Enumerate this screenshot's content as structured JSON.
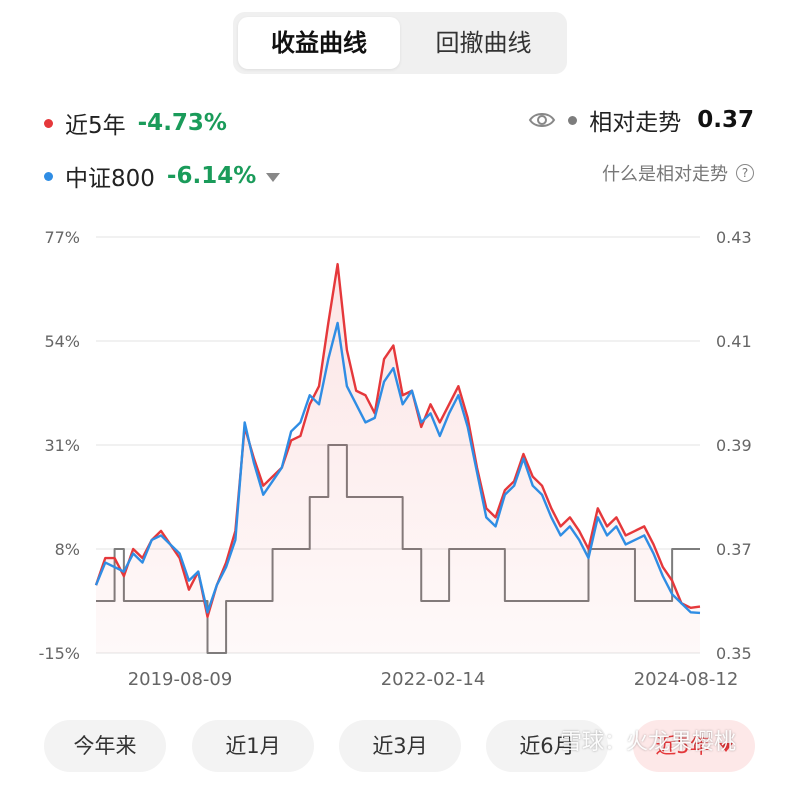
{
  "tabs": [
    {
      "label": "收益曲线",
      "active": true
    },
    {
      "label": "回撤曲线",
      "active": false
    }
  ],
  "legend": {
    "fund": {
      "name": "近5年",
      "value": "-4.73%",
      "color": "#e5383b",
      "value_color": "#1a9b5a"
    },
    "benchmark": {
      "name": "中证800",
      "value": "-6.14%",
      "color": "#2f8de4",
      "value_color": "#1a9b5a"
    },
    "relative": {
      "name": "相对走势",
      "value": "0.37",
      "color": "#7d7d7d"
    }
  },
  "help": {
    "label": "什么是相对走势",
    "icon_glyph": "?"
  },
  "chart_data": {
    "type": "line",
    "x_tick_labels": [
      "2019-08-09",
      "2022-02-14",
      "2024-08-12"
    ],
    "y_left": {
      "ticks": [
        "77%",
        "54%",
        "31%",
        "8%",
        "-15%"
      ],
      "range": [
        -15,
        77
      ],
      "unit": "%"
    },
    "y_right": {
      "ticks": [
        "0.43",
        "0.41",
        "0.39",
        "0.37",
        "0.35"
      ],
      "range": [
        0.35,
        0.43
      ]
    },
    "x_range": [
      "2019-03",
      "2024-08"
    ],
    "grid": true,
    "series": [
      {
        "name": "近5年",
        "axis": "left",
        "color": "#e5383b",
        "fill": true,
        "points": [
          [
            "2019-03",
            0
          ],
          [
            "2019-04",
            6
          ],
          [
            "2019-05",
            6
          ],
          [
            "2019-06",
            2
          ],
          [
            "2019-07",
            8
          ],
          [
            "2019-08",
            6
          ],
          [
            "2019-09",
            10
          ],
          [
            "2019-10",
            12
          ],
          [
            "2019-11",
            9
          ],
          [
            "2019-12",
            6
          ],
          [
            "2020-01",
            -1
          ],
          [
            "2020-02",
            3
          ],
          [
            "2020-03",
            -7
          ],
          [
            "2020-04",
            0
          ],
          [
            "2020-05",
            5
          ],
          [
            "2020-06",
            12
          ],
          [
            "2020-07",
            35
          ],
          [
            "2020-08",
            28
          ],
          [
            "2020-09",
            22
          ],
          [
            "2020-10",
            24
          ],
          [
            "2020-11",
            26
          ],
          [
            "2020-12",
            32
          ],
          [
            "2021-01",
            33
          ],
          [
            "2021-02",
            40
          ],
          [
            "2021-03",
            44
          ],
          [
            "2021-04",
            58
          ],
          [
            "2021-05",
            71
          ],
          [
            "2021-06",
            52
          ],
          [
            "2021-07",
            43
          ],
          [
            "2021-08",
            42
          ],
          [
            "2021-09",
            38
          ],
          [
            "2021-10",
            50
          ],
          [
            "2021-11",
            53
          ],
          [
            "2021-12",
            42
          ],
          [
            "2022-01",
            43
          ],
          [
            "2022-02",
            35
          ],
          [
            "2022-03",
            40
          ],
          [
            "2022-04",
            36
          ],
          [
            "2022-05",
            40
          ],
          [
            "2022-06",
            44
          ],
          [
            "2022-07",
            37
          ],
          [
            "2022-08",
            26
          ],
          [
            "2022-09",
            17
          ],
          [
            "2022-10",
            15
          ],
          [
            "2022-11",
            21
          ],
          [
            "2022-12",
            23
          ],
          [
            "2023-01",
            29
          ],
          [
            "2023-02",
            24
          ],
          [
            "2023-03",
            22
          ],
          [
            "2023-04",
            17
          ],
          [
            "2023-05",
            13
          ],
          [
            "2023-06",
            15
          ],
          [
            "2023-07",
            12
          ],
          [
            "2023-08",
            8
          ],
          [
            "2023-09",
            17
          ],
          [
            "2023-10",
            13
          ],
          [
            "2023-11",
            15
          ],
          [
            "2023-12",
            11
          ],
          [
            "2024-01",
            12
          ],
          [
            "2024-02",
            13
          ],
          [
            "2024-03",
            9
          ],
          [
            "2024-04",
            4
          ],
          [
            "2024-05",
            1
          ],
          [
            "2024-06",
            -4
          ],
          [
            "2024-07",
            -5
          ],
          [
            "2024-08",
            -4.73
          ]
        ]
      },
      {
        "name": "中证800",
        "axis": "left",
        "color": "#2f8de4",
        "fill": false,
        "points": [
          [
            "2019-03",
            0
          ],
          [
            "2019-04",
            5
          ],
          [
            "2019-05",
            4
          ],
          [
            "2019-06",
            3
          ],
          [
            "2019-07",
            7
          ],
          [
            "2019-08",
            5
          ],
          [
            "2019-09",
            10
          ],
          [
            "2019-10",
            11
          ],
          [
            "2019-11",
            9
          ],
          [
            "2019-12",
            7
          ],
          [
            "2020-01",
            1
          ],
          [
            "2020-02",
            3
          ],
          [
            "2020-03",
            -6
          ],
          [
            "2020-04",
            0
          ],
          [
            "2020-05",
            4
          ],
          [
            "2020-06",
            10
          ],
          [
            "2020-07",
            36
          ],
          [
            "2020-08",
            27
          ],
          [
            "2020-09",
            20
          ],
          [
            "2020-10",
            23
          ],
          [
            "2020-11",
            26
          ],
          [
            "2020-12",
            34
          ],
          [
            "2021-01",
            36
          ],
          [
            "2021-02",
            42
          ],
          [
            "2021-03",
            40
          ],
          [
            "2021-04",
            50
          ],
          [
            "2021-05",
            58
          ],
          [
            "2021-06",
            44
          ],
          [
            "2021-07",
            40
          ],
          [
            "2021-08",
            36
          ],
          [
            "2021-09",
            37
          ],
          [
            "2021-10",
            45
          ],
          [
            "2021-11",
            48
          ],
          [
            "2021-12",
            40
          ],
          [
            "2022-01",
            43
          ],
          [
            "2022-02",
            36
          ],
          [
            "2022-03",
            38
          ],
          [
            "2022-04",
            33
          ],
          [
            "2022-05",
            38
          ],
          [
            "2022-06",
            42
          ],
          [
            "2022-07",
            35
          ],
          [
            "2022-08",
            25
          ],
          [
            "2022-09",
            15
          ],
          [
            "2022-10",
            13
          ],
          [
            "2022-11",
            20
          ],
          [
            "2022-12",
            22
          ],
          [
            "2023-01",
            28
          ],
          [
            "2023-02",
            22
          ],
          [
            "2023-03",
            20
          ],
          [
            "2023-04",
            15
          ],
          [
            "2023-05",
            11
          ],
          [
            "2023-06",
            13
          ],
          [
            "2023-07",
            10
          ],
          [
            "2023-08",
            6
          ],
          [
            "2023-09",
            15
          ],
          [
            "2023-10",
            11
          ],
          [
            "2023-11",
            13
          ],
          [
            "2023-12",
            9
          ],
          [
            "2024-01",
            10
          ],
          [
            "2024-02",
            11
          ],
          [
            "2024-03",
            7
          ],
          [
            "2024-04",
            2
          ],
          [
            "2024-05",
            -2
          ],
          [
            "2024-06",
            -4
          ],
          [
            "2024-07",
            -6
          ],
          [
            "2024-08",
            -6.14
          ]
        ]
      },
      {
        "name": "相对走势",
        "axis": "right",
        "color": "#7d7d7d",
        "fill": false,
        "step": true,
        "points": [
          [
            "2019-03",
            0.36
          ],
          [
            "2019-05",
            0.37
          ],
          [
            "2019-06",
            0.36
          ],
          [
            "2019-09",
            0.36
          ],
          [
            "2019-12",
            0.36
          ],
          [
            "2020-03",
            0.35
          ],
          [
            "2020-05",
            0.36
          ],
          [
            "2020-08",
            0.36
          ],
          [
            "2020-10",
            0.37
          ],
          [
            "2020-12",
            0.37
          ],
          [
            "2021-02",
            0.38
          ],
          [
            "2021-04",
            0.39
          ],
          [
            "2021-06",
            0.38
          ],
          [
            "2021-09",
            0.38
          ],
          [
            "2021-12",
            0.37
          ],
          [
            "2022-02",
            0.36
          ],
          [
            "2022-05",
            0.37
          ],
          [
            "2022-08",
            0.37
          ],
          [
            "2022-11",
            0.36
          ],
          [
            "2023-02",
            0.36
          ],
          [
            "2023-05",
            0.36
          ],
          [
            "2023-08",
            0.37
          ],
          [
            "2023-11",
            0.37
          ],
          [
            "2024-01",
            0.36
          ],
          [
            "2024-03",
            0.36
          ],
          [
            "2024-05",
            0.37
          ],
          [
            "2024-07",
            0.37
          ],
          [
            "2024-08",
            0.37
          ]
        ]
      }
    ]
  },
  "periods": [
    {
      "label": "今年来",
      "selected": false
    },
    {
      "label": "近1月",
      "selected": false
    },
    {
      "label": "近3月",
      "selected": false
    },
    {
      "label": "近6月",
      "selected": false
    },
    {
      "label": "近5年",
      "selected": true
    }
  ],
  "watermark": "雪球：火龙果樱桃",
  "icons": {
    "eye": "eye-icon",
    "help": "question-circle-icon",
    "dropdown": "caret-down-icon"
  }
}
